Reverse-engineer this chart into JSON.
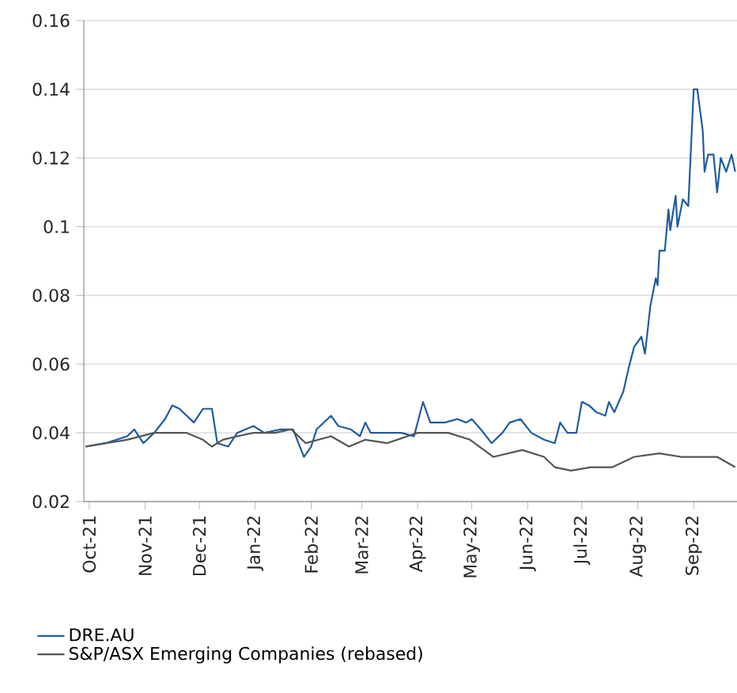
{
  "chart_data": {
    "type": "line",
    "xlim": [
      "2021-09-28",
      "2022-09-25"
    ],
    "ylim": [
      0.02,
      0.16
    ],
    "yticks": [
      0.02,
      0.04,
      0.06,
      0.08,
      0.1,
      0.12,
      0.14,
      0.16
    ],
    "xticks": [
      {
        "value": "2021-10-01",
        "label": "Oct-21"
      },
      {
        "value": "2021-11-01",
        "label": "Nov-21"
      },
      {
        "value": "2021-12-01",
        "label": "Dec-21"
      },
      {
        "value": "2022-01-01",
        "label": "Jan-22"
      },
      {
        "value": "2022-02-01",
        "label": "Feb-22"
      },
      {
        "value": "2022-03-01",
        "label": "Mar-22"
      },
      {
        "value": "2022-04-01",
        "label": "Apr-22"
      },
      {
        "value": "2022-05-01",
        "label": "May-22"
      },
      {
        "value": "2022-06-01",
        "label": "Jun-22"
      },
      {
        "value": "2022-07-01",
        "label": "Jul-22"
      },
      {
        "value": "2022-08-01",
        "label": "Aug-22"
      },
      {
        "value": "2022-09-01",
        "label": "Sep-22"
      }
    ],
    "grid": "y",
    "legend": "bottom",
    "marker": "none",
    "line_style": "solid",
    "series": [
      {
        "name": "DRE.AU",
        "color": "#1f5c9e",
        "x": [
          "2021-09-29",
          "2021-10-10",
          "2021-10-22",
          "2021-10-26",
          "2021-10-31",
          "2021-11-06",
          "2021-11-12",
          "2021-11-16",
          "2021-11-20",
          "2021-11-28",
          "2021-12-03",
          "2021-12-08",
          "2021-12-11",
          "2021-12-17",
          "2021-12-22",
          "2021-12-31",
          "2022-01-06",
          "2022-01-15",
          "2022-01-22",
          "2022-01-28",
          "2022-02-01",
          "2022-02-04",
          "2022-02-12",
          "2022-02-16",
          "2022-02-23",
          "2022-02-28",
          "2022-03-03",
          "2022-03-06",
          "2022-03-14",
          "2022-03-23",
          "2022-03-30",
          "2022-04-04",
          "2022-04-08",
          "2022-04-16",
          "2022-04-23",
          "2022-04-28",
          "2022-05-01",
          "2022-05-06",
          "2022-05-12",
          "2022-05-18",
          "2022-05-22",
          "2022-05-28",
          "2022-06-03",
          "2022-06-10",
          "2022-06-16",
          "2022-06-19",
          "2022-06-23",
          "2022-06-28",
          "2022-07-01",
          "2022-07-05",
          "2022-07-09",
          "2022-07-14",
          "2022-07-16",
          "2022-07-19",
          "2022-07-24",
          "2022-07-27",
          "2022-07-30",
          "2022-08-03",
          "2022-08-05",
          "2022-08-08",
          "2022-08-11",
          "2022-08-12",
          "2022-08-13",
          "2022-08-16",
          "2022-08-18",
          "2022-08-19",
          "2022-08-22",
          "2022-08-23",
          "2022-08-26",
          "2022-08-29",
          "2022-09-01",
          "2022-09-03",
          "2022-09-06",
          "2022-09-07",
          "2022-09-09",
          "2022-09-12",
          "2022-09-14",
          "2022-09-16",
          "2022-09-19",
          "2022-09-22",
          "2022-09-24"
        ],
        "values": [
          0.036,
          0.037,
          0.039,
          0.041,
          0.037,
          0.04,
          0.044,
          0.048,
          0.047,
          0.043,
          0.047,
          0.047,
          0.037,
          0.036,
          0.04,
          0.042,
          0.04,
          0.041,
          0.041,
          0.033,
          0.036,
          0.041,
          0.045,
          0.042,
          0.041,
          0.039,
          0.043,
          0.04,
          0.04,
          0.04,
          0.039,
          0.049,
          0.043,
          0.043,
          0.044,
          0.043,
          0.044,
          0.041,
          0.037,
          0.04,
          0.043,
          0.044,
          0.04,
          0.038,
          0.037,
          0.043,
          0.04,
          0.04,
          0.049,
          0.048,
          0.046,
          0.045,
          0.049,
          0.046,
          0.052,
          0.059,
          0.065,
          0.068,
          0.063,
          0.077,
          0.085,
          0.083,
          0.093,
          0.093,
          0.105,
          0.099,
          0.109,
          0.1,
          0.108,
          0.106,
          0.14,
          0.14,
          0.128,
          0.116,
          0.121,
          0.121,
          0.11,
          0.12,
          0.116,
          0.121,
          0.116
        ]
      },
      {
        "name": "S&P/ASX Emerging Companies (rebased)",
        "color": "#555555",
        "x": [
          "2021-09-29",
          "2021-10-22",
          "2021-11-06",
          "2021-11-15",
          "2021-11-24",
          "2021-12-03",
          "2021-12-08",
          "2021-12-14",
          "2021-12-22",
          "2021-12-31",
          "2022-01-12",
          "2022-01-21",
          "2022-01-29",
          "2022-02-12",
          "2022-02-22",
          "2022-03-03",
          "2022-03-15",
          "2022-04-01",
          "2022-04-18",
          "2022-04-30",
          "2022-05-13",
          "2022-05-29",
          "2022-06-10",
          "2022-06-16",
          "2022-06-25",
          "2022-07-06",
          "2022-07-18",
          "2022-07-30",
          "2022-08-13",
          "2022-08-25",
          "2022-09-05",
          "2022-09-14",
          "2022-09-24"
        ],
        "values": [
          0.036,
          0.038,
          0.04,
          0.04,
          0.04,
          0.038,
          0.036,
          0.038,
          0.039,
          0.04,
          0.04,
          0.041,
          0.037,
          0.039,
          0.036,
          0.038,
          0.037,
          0.04,
          0.04,
          0.038,
          0.033,
          0.035,
          0.033,
          0.03,
          0.029,
          0.03,
          0.03,
          0.033,
          0.034,
          0.033,
          0.033,
          0.033,
          0.03
        ]
      }
    ]
  }
}
